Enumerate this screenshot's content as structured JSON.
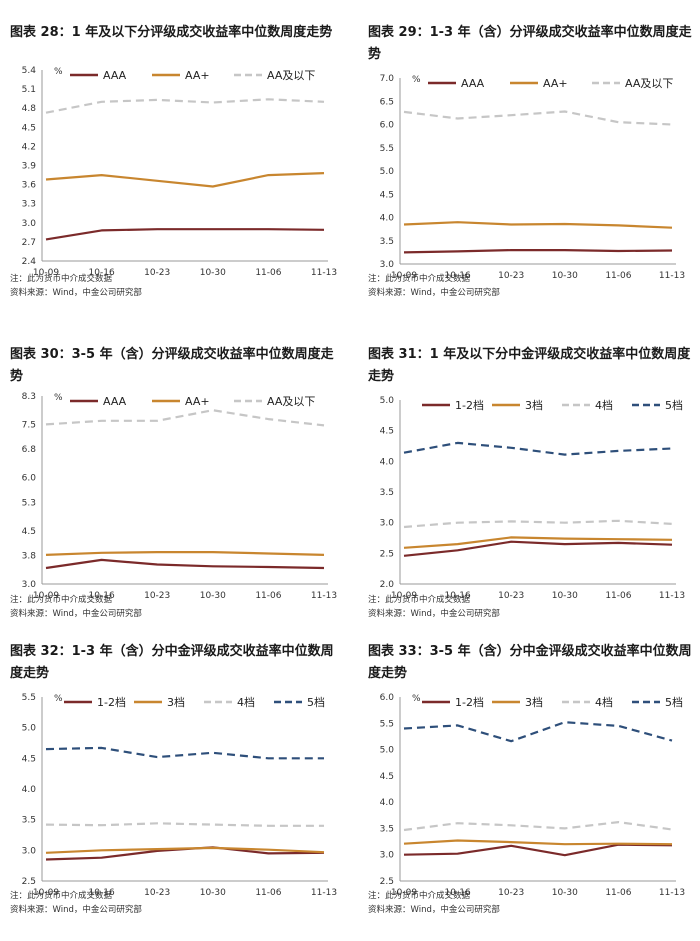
{
  "colors": {
    "AAA": "#7b2a2a",
    "AA+": "#c8862f",
    "AA_low": "#c6c6c6",
    "g12": "#7b2a2a",
    "g3": "#c8862f",
    "g4": "#c6c6c6",
    "g5": "#2e4f7a"
  },
  "charts": [
    {
      "title": "图表 28：1 年及以下分评级成交收益率中位数周度走势",
      "note": "注：此为货币中介成交数据",
      "source": "资料来源：Wind，中金公司研究部",
      "chart_data": {
        "type": "line",
        "unit": "%",
        "categories": [
          "10-09",
          "10-16",
          "10-23",
          "10-30",
          "11-06",
          "11-13"
        ],
        "yticks": [
          "2.4",
          "2.7",
          "3.0",
          "3.3",
          "3.6",
          "3.9",
          "4.2",
          "4.5",
          "4.8",
          "5.1",
          "5.4"
        ],
        "ylim": [
          2.4,
          5.4
        ],
        "series": [
          {
            "name": "AAA",
            "key": "AAA",
            "dash": false,
            "values": [
              2.74,
              2.88,
              2.9,
              2.9,
              2.9,
              2.89
            ]
          },
          {
            "name": "AA+",
            "key": "AA+",
            "dash": false,
            "values": [
              3.68,
              3.75,
              3.66,
              3.57,
              3.75,
              3.78
            ]
          },
          {
            "name": "AA及以下",
            "key": "AA_low",
            "dash": true,
            "values": [
              4.73,
              4.9,
              4.93,
              4.89,
              4.94,
              4.9
            ]
          }
        ]
      }
    },
    {
      "title": "图表 29：1-3 年（含）分评级成交收益率中位数周度走势",
      "note": "注：此为货币中介成交数据",
      "source": "资料来源：Wind，中金公司研究部",
      "chart_data": {
        "type": "line",
        "unit": "%",
        "categories": [
          "10-09",
          "10-16",
          "10-23",
          "10-30",
          "11-06",
          "11-13"
        ],
        "yticks": [
          "3.0",
          "3.5",
          "4.0",
          "4.5",
          "5.0",
          "5.5",
          "6.0",
          "6.5",
          "7.0"
        ],
        "ylim": [
          3.0,
          7.0
        ],
        "series": [
          {
            "name": "AAA",
            "key": "AAA",
            "dash": false,
            "values": [
              3.25,
              3.27,
              3.3,
              3.3,
              3.28,
              3.29
            ]
          },
          {
            "name": "AA+",
            "key": "AA+",
            "dash": false,
            "values": [
              3.85,
              3.9,
              3.85,
              3.86,
              3.83,
              3.78
            ]
          },
          {
            "name": "AA及以下",
            "key": "AA_low",
            "dash": true,
            "values": [
              6.27,
              6.13,
              6.2,
              6.28,
              6.05,
              6.0
            ]
          }
        ]
      }
    },
    {
      "title": "图表 30：3-5 年（含）分评级成交收益率中位数周度走势",
      "note": "注：此为货币中介成交数据",
      "source": "资料来源：Wind，中金公司研究部",
      "chart_data": {
        "type": "line",
        "unit": "%",
        "categories": [
          "10-09",
          "10-16",
          "10-23",
          "10-30",
          "11-06",
          "11-13"
        ],
        "yticks": [
          "3.0",
          "3.8",
          "4.5",
          "5.3",
          "6.0",
          "6.8",
          "7.5",
          "8.3"
        ],
        "ylim": [
          3.0,
          8.3
        ],
        "series": [
          {
            "name": "AAA",
            "key": "AAA",
            "dash": false,
            "values": [
              3.45,
              3.68,
              3.55,
              3.5,
              3.48,
              3.45
            ]
          },
          {
            "name": "AA+",
            "key": "AA+",
            "dash": false,
            "values": [
              3.82,
              3.88,
              3.9,
              3.9,
              3.86,
              3.82
            ]
          },
          {
            "name": "AA及以下",
            "key": "AA_low",
            "dash": true,
            "values": [
              7.5,
              7.6,
              7.6,
              7.9,
              7.65,
              7.47
            ]
          }
        ]
      }
    },
    {
      "title": "图表 31：1 年及以下分中金评级成交收益率中位数周度走势",
      "note": "注：此为货币中介成交数据",
      "source": "资料来源：Wind，中金公司研究部",
      "chart_data": {
        "type": "line",
        "unit": "",
        "categories": [
          "10-09",
          "10-16",
          "10-23",
          "10-30",
          "11-06",
          "11-13"
        ],
        "yticks": [
          "2.0",
          "2.5",
          "3.0",
          "3.5",
          "4.0",
          "4.5",
          "5.0"
        ],
        "ylim": [
          2.0,
          5.0
        ],
        "series": [
          {
            "name": "1-2档",
            "key": "g12",
            "dash": false,
            "values": [
              2.46,
              2.55,
              2.69,
              2.65,
              2.67,
              2.64
            ]
          },
          {
            "name": "3档",
            "key": "g3",
            "dash": false,
            "values": [
              2.59,
              2.65,
              2.76,
              2.74,
              2.73,
              2.72
            ]
          },
          {
            "name": "4档",
            "key": "g4",
            "dash": true,
            "values": [
              2.93,
              3.0,
              3.02,
              3.0,
              3.03,
              2.98
            ]
          },
          {
            "name": "5档",
            "key": "g5",
            "dash": true,
            "values": [
              4.14,
              4.3,
              4.22,
              4.11,
              4.17,
              4.21
            ]
          }
        ]
      }
    },
    {
      "title": "图表 32：1-3 年（含）分中金评级成交收益率中位数周度走势",
      "note": "注：此为货币中介成交数据",
      "source": "资料来源：Wind，中金公司研究部",
      "chart_data": {
        "type": "line",
        "unit": "%",
        "categories": [
          "10-09",
          "10-16",
          "10-23",
          "10-30",
          "11-06",
          "11-13"
        ],
        "yticks": [
          "2.5",
          "3.0",
          "3.5",
          "4.0",
          "4.5",
          "5.0",
          "5.5"
        ],
        "ylim": [
          2.5,
          5.5
        ],
        "series": [
          {
            "name": "1-2档",
            "key": "g12",
            "dash": false,
            "values": [
              2.85,
              2.88,
              2.99,
              3.05,
              2.95,
              2.96
            ]
          },
          {
            "name": "3档",
            "key": "g3",
            "dash": false,
            "values": [
              2.96,
              3.0,
              3.02,
              3.04,
              3.01,
              2.97
            ]
          },
          {
            "name": "4档",
            "key": "g4",
            "dash": true,
            "values": [
              3.42,
              3.41,
              3.44,
              3.42,
              3.4,
              3.4
            ]
          },
          {
            "name": "5档",
            "key": "g5",
            "dash": true,
            "values": [
              4.65,
              4.67,
              4.52,
              4.59,
              4.5,
              4.5
            ]
          }
        ]
      }
    },
    {
      "title": "图表 33：3-5 年（含）分中金评级成交收益率中位数周度走势",
      "note": "注：此为货币中介成交数据",
      "source": "资料来源：Wind，中金公司研究部",
      "chart_data": {
        "type": "line",
        "unit": "%",
        "categories": [
          "10-09",
          "10-16",
          "10-23",
          "10-30",
          "11-06",
          "11-13"
        ],
        "yticks": [
          "2.5",
          "3.0",
          "3.5",
          "4.0",
          "4.5",
          "5.0",
          "5.5",
          "6.0"
        ],
        "ylim": [
          2.5,
          6.0
        ],
        "series": [
          {
            "name": "1-2档",
            "key": "g12",
            "dash": false,
            "values": [
              3.0,
              3.02,
              3.17,
              2.99,
              3.19,
              3.18
            ]
          },
          {
            "name": "3档",
            "key": "g3",
            "dash": false,
            "values": [
              3.21,
              3.27,
              3.24,
              3.2,
              3.21,
              3.2
            ]
          },
          {
            "name": "4档",
            "key": "g4",
            "dash": true,
            "values": [
              3.47,
              3.6,
              3.56,
              3.5,
              3.62,
              3.48
            ]
          },
          {
            "name": "5档",
            "key": "g5",
            "dash": true,
            "values": [
              5.4,
              5.46,
              5.16,
              5.52,
              5.45,
              5.17
            ]
          }
        ]
      }
    }
  ]
}
